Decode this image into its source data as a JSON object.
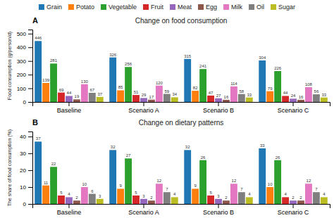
{
  "chart_data": [
    {
      "type": "bar",
      "title": "Change on food consumption",
      "ylabel": "Food consumption (g/person/d)",
      "annotations": [
        "A"
      ],
      "categories": [
        "Baseline",
        "Scenario A",
        "Scenario B",
        "Scenario C"
      ],
      "series": [
        {
          "name": "Grain",
          "values": [
            446,
            326,
            315,
            304
          ]
        },
        {
          "name": "Potato",
          "values": [
            139,
            85,
            82,
            79
          ]
        },
        {
          "name": "Vegetable",
          "values": [
            281,
            256,
            241,
            226
          ]
        },
        {
          "name": "Fruit",
          "values": [
            69,
            51,
            47,
            44
          ]
        },
        {
          "name": "Meat",
          "values": [
            44,
            29,
            27,
            24
          ]
        },
        {
          "name": "Egg",
          "values": [
            19,
            17,
            16,
            16
          ]
        },
        {
          "name": "Milk",
          "values": [
            130,
            120,
            114,
            108
          ]
        },
        {
          "name": "Oil",
          "values": [
            67,
            59,
            58,
            56
          ]
        },
        {
          "name": "Sugar",
          "values": [
            37,
            34,
            33,
            33
          ]
        }
      ],
      "ylim": [
        0,
        530
      ],
      "yticks": [
        0,
        100,
        200,
        300,
        400,
        500
      ],
      "data_labels": true,
      "grid": false,
      "legend": "top"
    },
    {
      "type": "bar",
      "title": "Change on dietary patterns",
      "ylabel": "The share of food consumption (%)",
      "annotations": [
        "B"
      ],
      "categories": [
        "Baseline",
        "Scenario A",
        "Scenario B",
        "Scenario C"
      ],
      "series": [
        {
          "name": "Grain",
          "values": [
            37,
            32,
            32,
            33
          ]
        },
        {
          "name": "Potato",
          "values": [
            11,
            9,
            9,
            10
          ]
        },
        {
          "name": "Vegetable",
          "values": [
            22,
            27,
            26,
            26
          ]
        },
        {
          "name": "Fruit",
          "values": [
            5,
            5,
            5,
            4
          ]
        },
        {
          "name": "Meat",
          "values": [
            4,
            3,
            3,
            2
          ]
        },
        {
          "name": "Egg",
          "values": [
            2,
            2,
            2,
            2
          ]
        },
        {
          "name": "Milk",
          "values": [
            10,
            12,
            12,
            12
          ]
        },
        {
          "name": "Oil",
          "values": [
            6,
            7,
            7,
            7
          ]
        },
        {
          "name": "Sugar",
          "values": [
            3,
            4,
            4,
            4
          ]
        }
      ],
      "ylim": [
        0,
        43
      ],
      "yticks": [
        0,
        10,
        20,
        30,
        40
      ],
      "data_labels": true,
      "grid": false
    }
  ]
}
